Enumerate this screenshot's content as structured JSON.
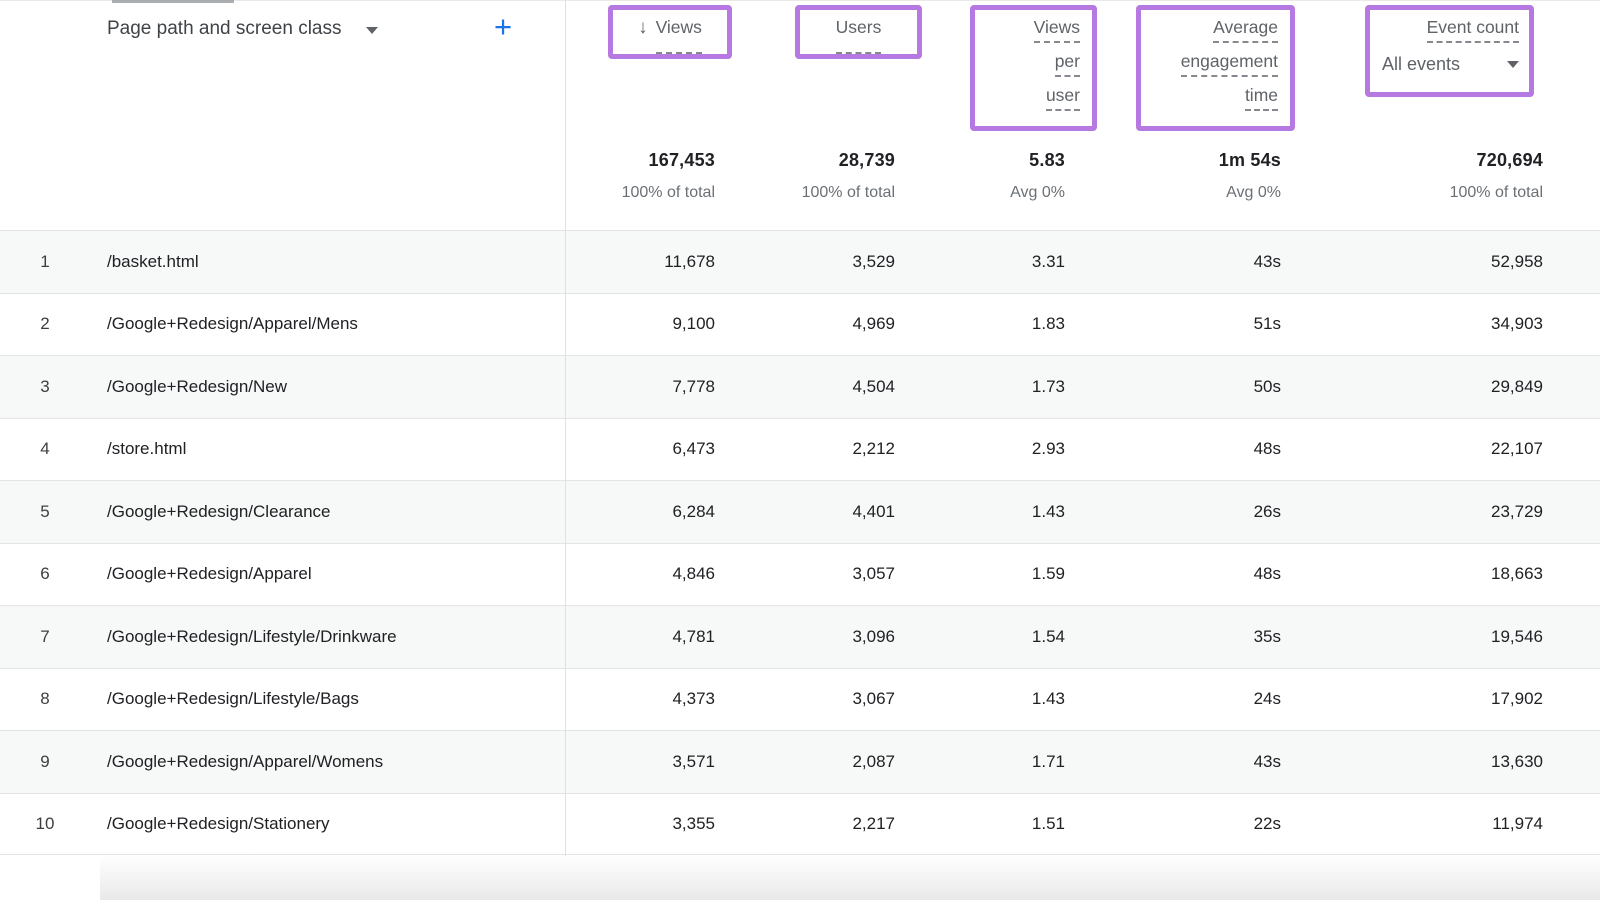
{
  "header": {
    "dimension_label": "Page path and screen class",
    "add_button_label": "+",
    "metric_columns": [
      {
        "lines": [
          "Views"
        ],
        "sorted_desc": true
      },
      {
        "lines": [
          "Users"
        ]
      },
      {
        "lines": [
          "Views",
          "per",
          "user"
        ]
      },
      {
        "lines": [
          "Average",
          "engagement",
          "time"
        ]
      },
      {
        "lines": [
          "Event count"
        ],
        "filter_label": "All events"
      }
    ]
  },
  "icons": {
    "sort_descending": "↓"
  },
  "totals": {
    "views": {
      "value": "167,453",
      "sub": "100% of total"
    },
    "users": {
      "value": "28,739",
      "sub": "100% of total"
    },
    "views_per_user": {
      "value": "5.83",
      "sub": "Avg 0%"
    },
    "avg_engagement_time": {
      "value": "1m 54s",
      "sub": "Avg 0%"
    },
    "event_count": {
      "value": "720,694",
      "sub": "100% of total"
    }
  },
  "rows": [
    {
      "rank": "1",
      "page_path": "/basket.html",
      "views": "11,678",
      "users": "3,529",
      "views_per_user": "3.31",
      "avg_engagement_time": "43s",
      "event_count": "52,958"
    },
    {
      "rank": "2",
      "page_path": "/Google+Redesign/Apparel/Mens",
      "views": "9,100",
      "users": "4,969",
      "views_per_user": "1.83",
      "avg_engagement_time": "51s",
      "event_count": "34,903"
    },
    {
      "rank": "3",
      "page_path": "/Google+Redesign/New",
      "views": "7,778",
      "users": "4,504",
      "views_per_user": "1.73",
      "avg_engagement_time": "50s",
      "event_count": "29,849"
    },
    {
      "rank": "4",
      "page_path": "/store.html",
      "views": "6,473",
      "users": "2,212",
      "views_per_user": "2.93",
      "avg_engagement_time": "48s",
      "event_count": "22,107"
    },
    {
      "rank": "5",
      "page_path": "/Google+Redesign/Clearance",
      "views": "6,284",
      "users": "4,401",
      "views_per_user": "1.43",
      "avg_engagement_time": "26s",
      "event_count": "23,729"
    },
    {
      "rank": "6",
      "page_path": "/Google+Redesign/Apparel",
      "views": "4,846",
      "users": "3,057",
      "views_per_user": "1.59",
      "avg_engagement_time": "48s",
      "event_count": "18,663"
    },
    {
      "rank": "7",
      "page_path": "/Google+Redesign/Lifestyle/Drinkware",
      "views": "4,781",
      "users": "3,096",
      "views_per_user": "1.54",
      "avg_engagement_time": "35s",
      "event_count": "19,546"
    },
    {
      "rank": "8",
      "page_path": "/Google+Redesign/Lifestyle/Bags",
      "views": "4,373",
      "users": "3,067",
      "views_per_user": "1.43",
      "avg_engagement_time": "24s",
      "event_count": "17,902"
    },
    {
      "rank": "9",
      "page_path": "/Google+Redesign/Apparel/Womens",
      "views": "3,571",
      "users": "2,087",
      "views_per_user": "1.71",
      "avg_engagement_time": "43s",
      "event_count": "13,630"
    },
    {
      "rank": "10",
      "page_path": "/Google+Redesign/Stationery",
      "views": "3,355",
      "users": "2,217",
      "views_per_user": "1.51",
      "avg_engagement_time": "22s",
      "event_count": "11,974"
    }
  ],
  "colors": {
    "highlight_purple": "#b679e2",
    "link_blue": "#1a73e8"
  }
}
